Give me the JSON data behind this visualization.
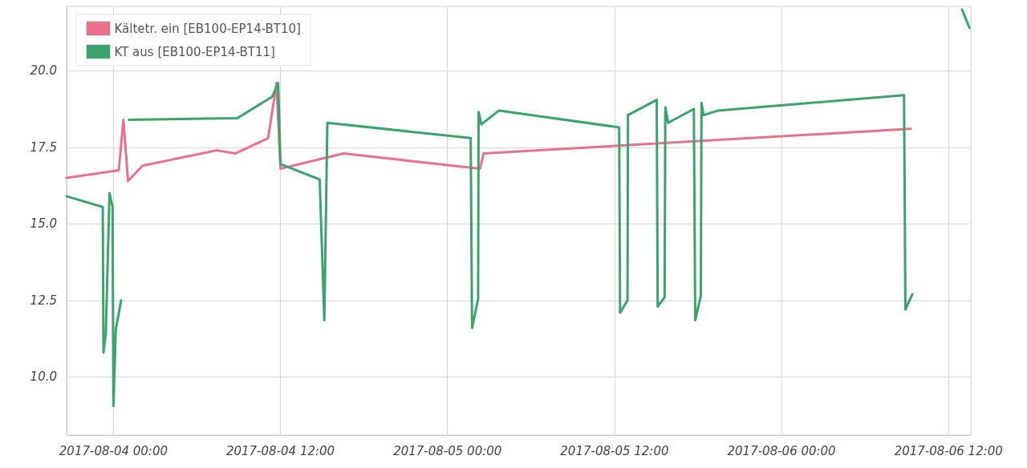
{
  "chart_data": {
    "type": "line",
    "xlim": [
      "2017-08-03T20:38",
      "2017-08-06T13:36"
    ],
    "xticks": [
      {
        "value": "2017-08-04T00:00",
        "label": "2017-08-04 00:00"
      },
      {
        "value": "2017-08-04T12:00",
        "label": "2017-08-04 12:00"
      },
      {
        "value": "2017-08-05T00:00",
        "label": "2017-08-05 00:00"
      },
      {
        "value": "2017-08-05T12:00",
        "label": "2017-08-05 12:00"
      },
      {
        "value": "2017-08-06T00:00",
        "label": "2017-08-06 00:00"
      },
      {
        "value": "2017-08-06T12:00",
        "label": "2017-08-06 12:00"
      }
    ],
    "ylim": [
      8.1,
      22.1
    ],
    "yticks": [
      {
        "value": 10,
        "label": "10.0"
      },
      {
        "value": 12.5,
        "label": "12.5"
      },
      {
        "value": 15,
        "label": "15.0"
      },
      {
        "value": 17.5,
        "label": "17.5"
      },
      {
        "value": 20,
        "label": "20.0"
      }
    ],
    "grid": true,
    "legend": "top left",
    "marker": "none",
    "line_style": "solid",
    "series": [
      {
        "name": "Kältetr. ein [EB100-EP14-BT10]",
        "color": "#e8718b",
        "x": [
          "2017-08-03T20:38",
          "2017-08-04T00:23",
          "2017-08-04T00:43",
          "2017-08-04T01:03",
          "2017-08-04T02:06",
          "2017-08-04T07:25",
          "2017-08-04T08:47",
          "2017-08-04T11:07",
          "2017-08-04T11:43",
          "2017-08-04T12:00",
          "2017-08-04T16:32",
          "2017-08-05T02:20",
          "2017-08-05T02:36",
          "2017-08-06T09:17"
        ],
        "values": [
          16.5,
          16.75,
          18.4,
          16.4,
          16.9,
          17.4,
          17.3,
          17.8,
          19.6,
          16.8,
          17.3,
          16.8,
          17.3,
          18.1
        ]
      },
      {
        "name": "KT aus [EB100-EP14-BT11]",
        "color": "#3aa46c",
        "x": [
          "2017-08-03T20:38",
          "2017-08-03T23:14",
          "2017-08-03T23:17",
          "2017-08-03T23:27",
          "2017-08-03T23:43",
          "2017-08-03T23:56",
          "2017-08-04T00:00",
          "2017-08-04T00:10",
          "2017-08-04T00:33",
          "2017-08-04T00:37",
          "2017-08-04T00:46",
          "2017-08-04T00:56",
          "2017-08-04T01:07",
          "2017-08-04T08:54",
          "2017-08-04T11:24",
          "2017-08-04T11:50",
          "2017-08-04T12:00",
          "2017-08-04T14:49",
          "2017-08-04T15:09",
          "2017-08-04T15:22",
          "2017-08-05T01:40",
          "2017-08-05T01:46",
          "2017-08-05T02:12",
          "2017-08-05T02:14",
          "2017-08-05T02:26",
          "2017-08-05T03:42",
          "2017-08-05T12:20",
          "2017-08-05T12:24",
          "2017-08-05T12:56",
          "2017-08-05T12:58",
          "2017-08-05T15:02",
          "2017-08-05T15:06",
          "2017-08-05T15:36",
          "2017-08-05T15:39",
          "2017-08-05T15:51",
          "2017-08-05T17:42",
          "2017-08-05T17:48",
          "2017-08-05T18:12",
          "2017-08-05T18:15",
          "2017-08-05T18:24",
          "2017-08-05T19:27",
          "2017-08-06T08:48",
          "2017-08-06T08:54",
          "2017-08-06T09:24",
          "2017-08-06T09:48",
          "2017-08-06T11:00",
          "2017-08-06T12:58",
          "2017-08-06T13:30"
        ],
        "values": [
          15.9,
          15.55,
          10.8,
          11.4,
          16.0,
          15.55,
          9.05,
          11.55,
          12.5,
          null,
          null,
          null,
          18.4,
          18.45,
          19.15,
          19.6,
          16.95,
          16.45,
          11.85,
          18.3,
          17.8,
          11.6,
          12.55,
          18.65,
          18.25,
          18.7,
          18.15,
          12.1,
          12.5,
          18.55,
          19.05,
          12.3,
          12.6,
          18.8,
          18.3,
          18.75,
          11.85,
          12.65,
          18.95,
          18.55,
          18.7,
          19.2,
          12.2,
          12.7,
          null,
          null,
          22.0,
          21.4
        ]
      }
    ]
  }
}
